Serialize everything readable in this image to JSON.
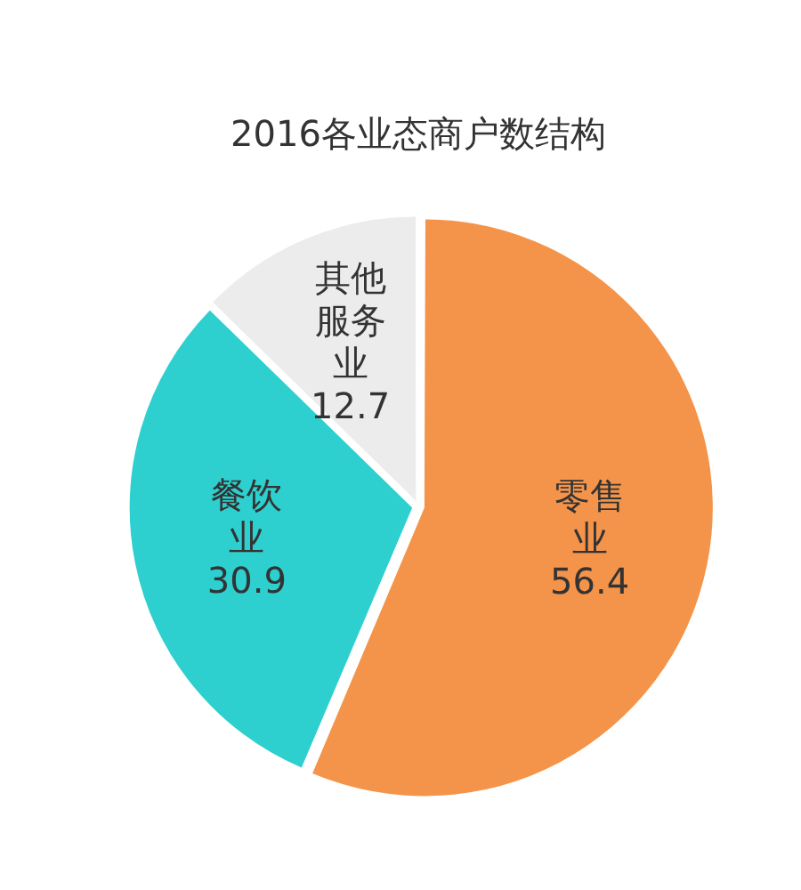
{
  "chart_data": {
    "type": "pie",
    "title": "2016各业态商户数结构",
    "categories": [
      "零售业",
      "餐饮业",
      "其他服务业"
    ],
    "values": [
      56.4,
      30.9,
      12.7
    ],
    "colors": [
      "#f4944a",
      "#2ecfcf",
      "#ececec"
    ],
    "data_labels": true,
    "legend": false
  }
}
